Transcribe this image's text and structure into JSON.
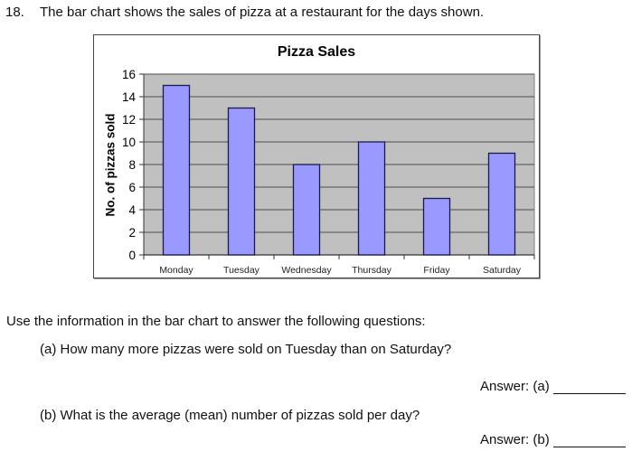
{
  "question": {
    "number": "18.",
    "text": "The bar chart shows the sales of pizza at a restaurant for the days shown."
  },
  "instructions": "Use the information in the bar chart to answer the following questions:",
  "parts": [
    {
      "label": "(a) How many more pizzas were sold on Tuesday than on Saturday?",
      "answer_label": "Answer: (a)"
    },
    {
      "label": "(b) What is the average (mean) number of pizzas sold per day?",
      "answer_label": "Answer: (b)"
    }
  ],
  "colors": {
    "bar_fill": "#9999ff",
    "bar_stroke": "#1a1a4d",
    "plot_bg": "#c0c0c0",
    "gridline": "#4d4d4d"
  },
  "chart_data": {
    "type": "bar",
    "title": "Pizza Sales",
    "xlabel": "",
    "ylabel": "No. of pizzas sold",
    "categories": [
      "Monday",
      "Tuesday",
      "Wednesday",
      "Thursday",
      "Friday",
      "Saturday"
    ],
    "values": [
      15,
      13,
      8,
      10,
      5,
      9
    ],
    "ylim": [
      0,
      16
    ],
    "yticks": [
      0,
      2,
      4,
      6,
      8,
      10,
      12,
      14,
      16
    ],
    "grid": true,
    "legend": null
  }
}
